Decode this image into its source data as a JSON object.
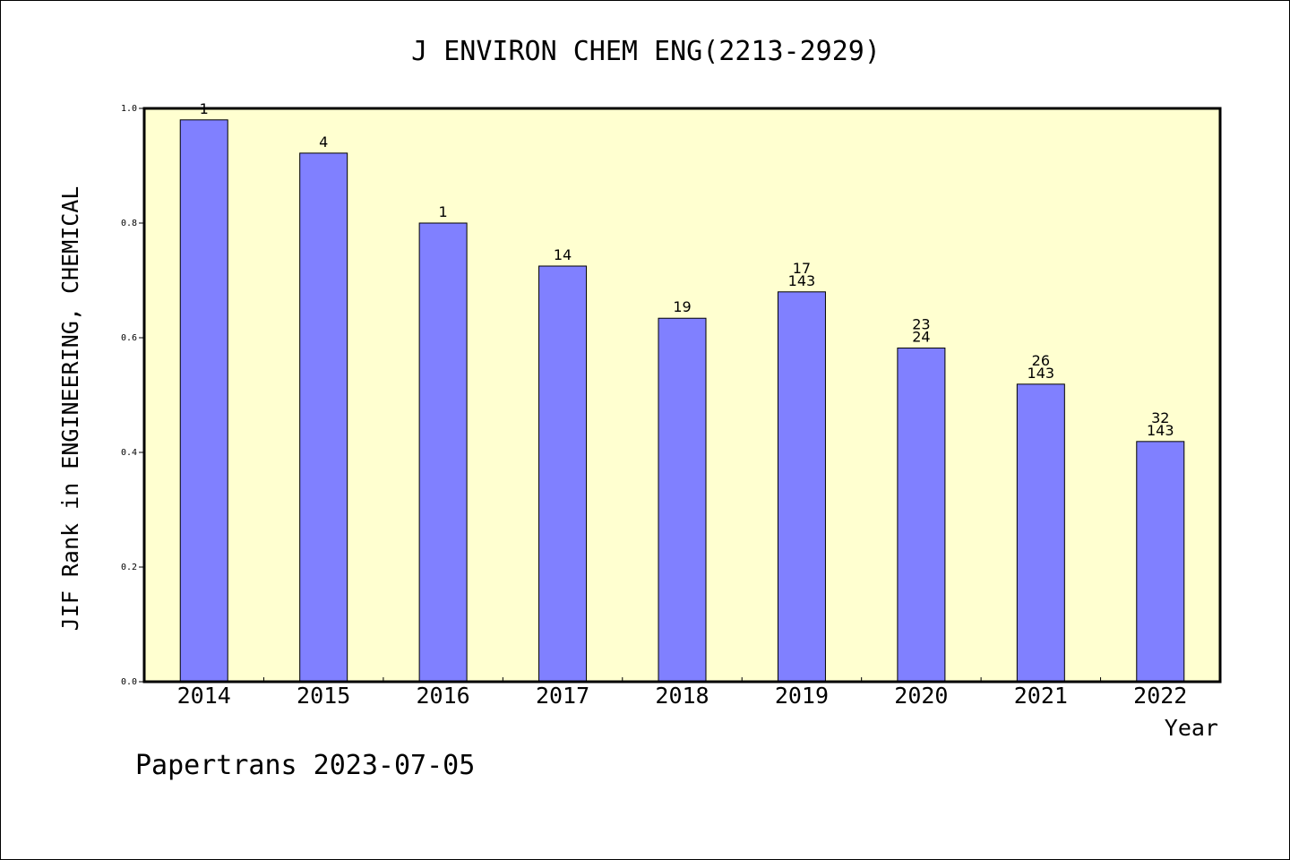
{
  "chart_data": {
    "type": "bar",
    "title": "J ENVIRON CHEM ENG(2213-2929)",
    "xlabel": "Year",
    "ylabel": "JIF Rank in ENGINEERING, CHEMICAL",
    "ylim": [
      0,
      1.0
    ],
    "yticks": [
      "0.0",
      "0.2",
      "0.4",
      "0.6",
      "0.8",
      "1.0"
    ],
    "categories": [
      "2014",
      "2015",
      "2016",
      "2017",
      "2018",
      "2019",
      "2020",
      "2021",
      "2022"
    ],
    "values": [
      0.98,
      0.922,
      0.8,
      0.725,
      0.634,
      0.68,
      0.582,
      0.519,
      0.419
    ],
    "labels": [
      [
        "1"
      ],
      [
        "4"
      ],
      [
        "1"
      ],
      [
        "14"
      ],
      [
        "19"
      ],
      [
        "17",
        "143"
      ],
      [
        "23",
        "24"
      ],
      [
        "26",
        "143"
      ],
      [
        "32",
        "143"
      ]
    ],
    "grid": false,
    "bar_color": "#8080ff",
    "plot_background": "#ffffd0"
  },
  "footer": "Papertrans 2023-07-05"
}
